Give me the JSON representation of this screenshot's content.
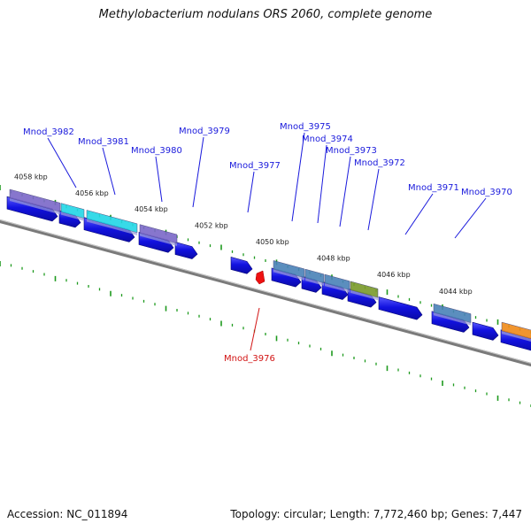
{
  "header": {
    "title": "Methylobacterium nodulans ORS 2060, complete genome"
  },
  "footer": {
    "accession": "Accession: NC_011894",
    "summary": "Topology: circular; Length: 7,772,460 bp; Genes: 7,447"
  },
  "ruler": {
    "labels": [
      "4058 kbp",
      "4056 kbp",
      "4054 kbp",
      "4052 kbp",
      "4050 kbp",
      "4048 kbp",
      "4046 kbp",
      "4044 kbp"
    ]
  },
  "genes": [
    {
      "label": "Mnod_3982",
      "selected": false
    },
    {
      "label": "Mnod_3981",
      "selected": false
    },
    {
      "label": "Mnod_3980",
      "selected": false
    },
    {
      "label": "Mnod_3979",
      "selected": false
    },
    {
      "label": "Mnod_3977",
      "selected": false
    },
    {
      "label": "Mnod_3975",
      "selected": false
    },
    {
      "label": "Mnod_3974",
      "selected": false
    },
    {
      "label": "Mnod_3973",
      "selected": false
    },
    {
      "label": "Mnod_3972",
      "selected": false
    },
    {
      "label": "Mnod_3971",
      "selected": false
    },
    {
      "label": "Mnod_3970",
      "selected": false
    },
    {
      "label": "Mnod_3976",
      "selected": true
    }
  ],
  "colors": {
    "cds": "#1212e0",
    "cds_light": "#5a5aff",
    "tick": "#1e9a1e",
    "backbone": "#7a7a7a",
    "label_normal": "#1a1adc",
    "label_selected": "#d21414",
    "marker": "#ee1111",
    "annotation_purple": "#7b68c8",
    "annotation_cyan": "#22d6e6",
    "annotation_steel": "#4a82b8",
    "annotation_olive": "#7a9a2a",
    "annotation_orange": "#f08a18"
  }
}
